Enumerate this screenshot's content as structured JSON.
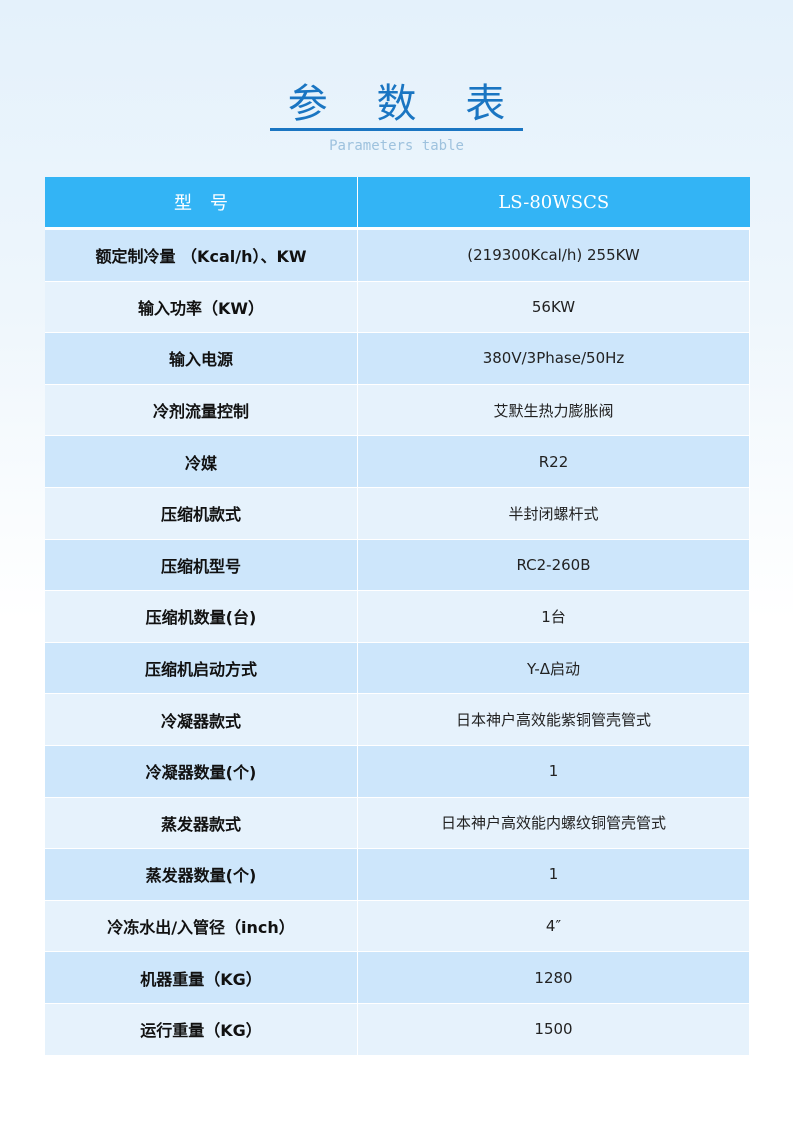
{
  "title": "参 数 表",
  "subtitle": "Parameters table",
  "header": {
    "key": "型　号",
    "value": "LS-80WSCS"
  },
  "rows": [
    {
      "k": "额定制冷量 （Kcal/h）、KW",
      "v": "(219300Kcal/h)  255KW"
    },
    {
      "k": "输入功率（KW）",
      "v": "56KW"
    },
    {
      "k": "输入电源",
      "v": "380V/3Phase/50Hz"
    },
    {
      "k": "冷剂流量控制",
      "v": "艾默生热力膨胀阀"
    },
    {
      "k": "冷媒",
      "v": "R22"
    },
    {
      "k": "压缩机款式",
      "v": "半封闭螺杆式"
    },
    {
      "k": "压缩机型号",
      "v": "RC2-260B"
    },
    {
      "k": "压缩机数量(台)",
      "v": "1台"
    },
    {
      "k": "压缩机启动方式",
      "v": "Y-Δ启动"
    },
    {
      "k": "冷凝器款式",
      "v": "日本神户高效能紫铜管壳管式"
    },
    {
      "k": "冷凝器数量(个)",
      "v": "1"
    },
    {
      "k": "蒸发器款式",
      "v": "日本神户高效能内螺纹铜管壳管式"
    },
    {
      "k": "蒸发器数量(个)",
      "v": "1"
    },
    {
      "k": "冷冻水出/入管径（inch）",
      "v": "4″"
    },
    {
      "k": "机器重量（KG）",
      "v": "1280"
    },
    {
      "k": "运行重量（KG）",
      "v": "1500"
    }
  ]
}
